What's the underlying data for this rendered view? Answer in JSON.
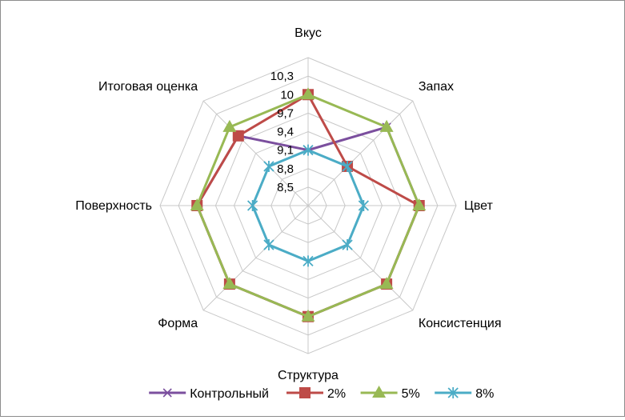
{
  "chart_data": {
    "type": "radar",
    "categories": [
      "Вкус",
      "Запах",
      "Цвет",
      "Консистенция",
      "Структура",
      "Форма",
      "Поверхность",
      "Итоговая оценка"
    ],
    "ticks": [
      "8,5",
      "8,8",
      "9,1",
      "9,4",
      "9,7",
      "10",
      "10,3"
    ],
    "tick_values": [
      8.5,
      8.8,
      9.1,
      9.4,
      9.7,
      10.0,
      10.3
    ],
    "rmin": 8.2,
    "rmax": 10.6,
    "grid": true,
    "legend_position": "bottom",
    "series": [
      {
        "name": "Контрольный",
        "color": "#7b4f9e",
        "marker": "x",
        "values": [
          9.1,
          10.0,
          10.0,
          10.0,
          10.0,
          10.0,
          10.0,
          9.8
        ]
      },
      {
        "name": "2%",
        "color": "#be4b48",
        "marker": "square",
        "values": [
          10.0,
          9.1,
          10.0,
          10.0,
          10.0,
          10.0,
          10.0,
          9.8
        ]
      },
      {
        "name": "5%",
        "color": "#98b954",
        "marker": "triangle",
        "values": [
          10.0,
          10.0,
          10.0,
          10.0,
          10.0,
          10.0,
          10.0,
          10.0
        ]
      },
      {
        "name": "8%",
        "color": "#4bacc6",
        "marker": "star",
        "values": [
          9.1,
          9.1,
          9.1,
          9.1,
          9.1,
          9.1,
          9.1,
          9.1
        ]
      }
    ]
  }
}
